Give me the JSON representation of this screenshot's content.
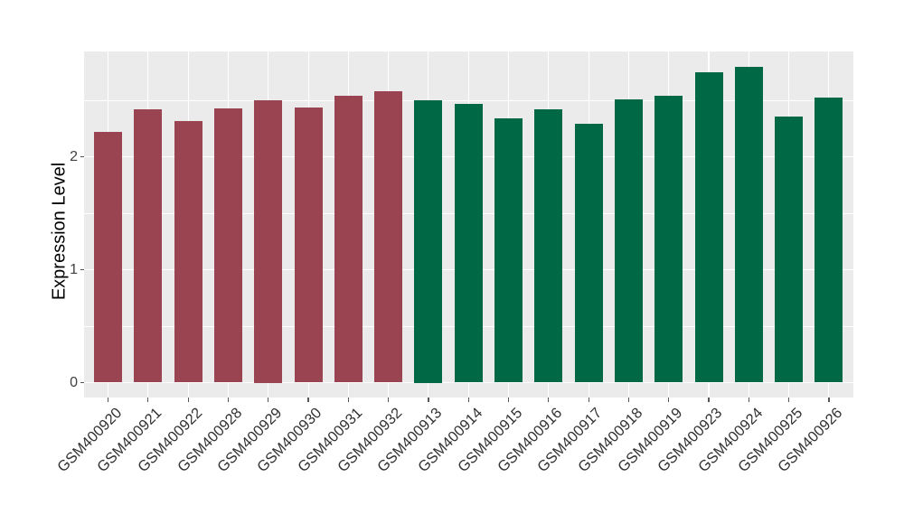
{
  "chart_data": {
    "type": "bar",
    "title": "",
    "xlabel": "",
    "ylabel": "Expression Level",
    "categories": [
      "GSM400920",
      "GSM400921",
      "GSM400922",
      "GSM400928",
      "GSM400929",
      "GSM400930",
      "GSM400931",
      "GSM400932",
      "GSM400913",
      "GSM400914",
      "GSM400915",
      "GSM400916",
      "GSM400917",
      "GSM400918",
      "GSM400919",
      "GSM400923",
      "GSM400924",
      "GSM400925",
      "GSM400926"
    ],
    "values": [
      2.22,
      2.42,
      2.32,
      2.43,
      2.5,
      2.44,
      2.54,
      2.58,
      2.5,
      2.47,
      2.34,
      2.42,
      2.29,
      2.51,
      2.54,
      2.75,
      2.8,
      2.36,
      2.53
    ],
    "bar_groups": [
      "A",
      "A",
      "A",
      "A",
      "A",
      "A",
      "A",
      "A",
      "B",
      "B",
      "B",
      "B",
      "B",
      "B",
      "B",
      "B",
      "B",
      "B",
      "B"
    ],
    "group_colors": {
      "A": "#9A4351",
      "B": "#006845"
    },
    "y_ticks": [
      0,
      1,
      2
    ],
    "y_tick_labels": [
      "0",
      "1",
      "2"
    ],
    "y_minor_ticks": [
      0.5,
      1.5,
      2.5
    ],
    "ylim": [
      -0.13,
      2.93
    ],
    "grid": "major-and-minor",
    "legend_position": "none",
    "panel_bg": "#EBEBEB",
    "grid_color": "#FFFFFF",
    "axis_text_color": "#404040",
    "x_label_angle_deg": 45
  }
}
